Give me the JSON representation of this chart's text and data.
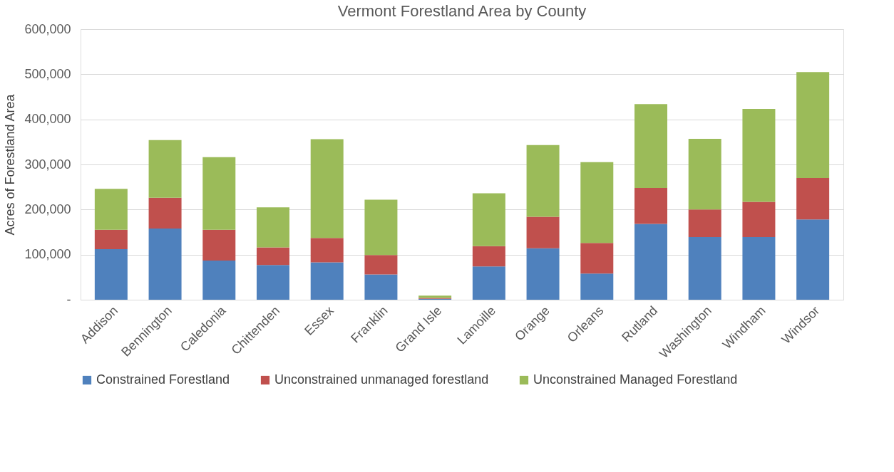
{
  "chart_data": {
    "type": "bar",
    "title": "Vermont Forestland Area by County",
    "ylabel": "Acres of Forestland Area",
    "categories": [
      "Addison",
      "Bennington",
      "Caledonia",
      "Chittenden",
      "Essex",
      "Franklin",
      "Grand Isle",
      "Lamoille",
      "Orange",
      "Orleans",
      "Rutland",
      "Washington",
      "Windham",
      "Windsor"
    ],
    "series": [
      {
        "name": "Constrained Forestland",
        "color": "#4f81bd",
        "values": [
          112000,
          158000,
          87000,
          77000,
          83000,
          56000,
          2000,
          74000,
          114000,
          58000,
          168000,
          139000,
          139000,
          178000
        ]
      },
      {
        "name": "Unconstrained unmanaged forestland",
        "color": "#c0504d",
        "values": [
          43000,
          68000,
          68000,
          39000,
          54000,
          43000,
          2000,
          45000,
          70000,
          68000,
          80000,
          61000,
          78000,
          92000
        ]
      },
      {
        "name": "Unconstrained Managed Forestland",
        "color": "#9bbb59",
        "values": [
          91000,
          128000,
          161000,
          89000,
          219000,
          123000,
          5000,
          117000,
          159000,
          179000,
          186000,
          157000,
          206000,
          235000
        ]
      }
    ],
    "stacked": true,
    "ylim": [
      0,
      600000
    ],
    "yticks": [
      {
        "value": 0,
        "label": "-"
      },
      {
        "value": 100000,
        "label": "100,000"
      },
      {
        "value": 200000,
        "label": "200,000"
      },
      {
        "value": 300000,
        "label": "300,000"
      },
      {
        "value": 400000,
        "label": "400,000"
      },
      {
        "value": 500000,
        "label": "500,000"
      },
      {
        "value": 600000,
        "label": "600,000"
      }
    ],
    "grid": "y",
    "legend": "bottom"
  }
}
